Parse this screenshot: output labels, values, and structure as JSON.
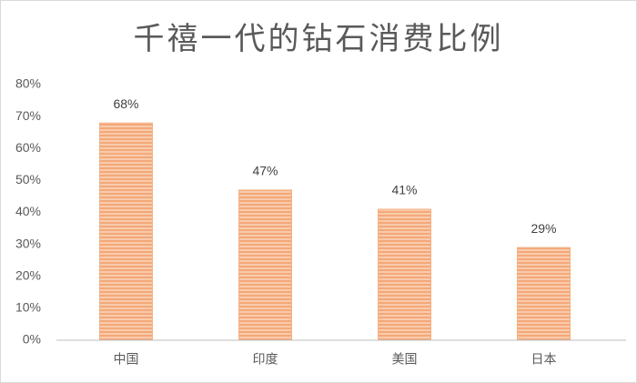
{
  "chart_data": {
    "type": "bar",
    "title": "千禧一代的钻石消费比例",
    "categories": [
      "中国",
      "印度",
      "美国",
      "日本"
    ],
    "values": [
      68,
      47,
      41,
      29
    ],
    "value_labels": [
      "68%",
      "47%",
      "41%",
      "29%"
    ],
    "color": "#f4b183",
    "ylim": [
      0,
      80
    ],
    "yticks": [
      {
        "value": 0,
        "label": "0%"
      },
      {
        "value": 10,
        "label": "10%"
      },
      {
        "value": 20,
        "label": "20%"
      },
      {
        "value": 30,
        "label": "30%"
      },
      {
        "value": 40,
        "label": "40%"
      },
      {
        "value": 50,
        "label": "50%"
      },
      {
        "value": 60,
        "label": "60%"
      },
      {
        "value": 70,
        "label": "70%"
      },
      {
        "value": 80,
        "label": "80%"
      }
    ],
    "grid": false
  }
}
